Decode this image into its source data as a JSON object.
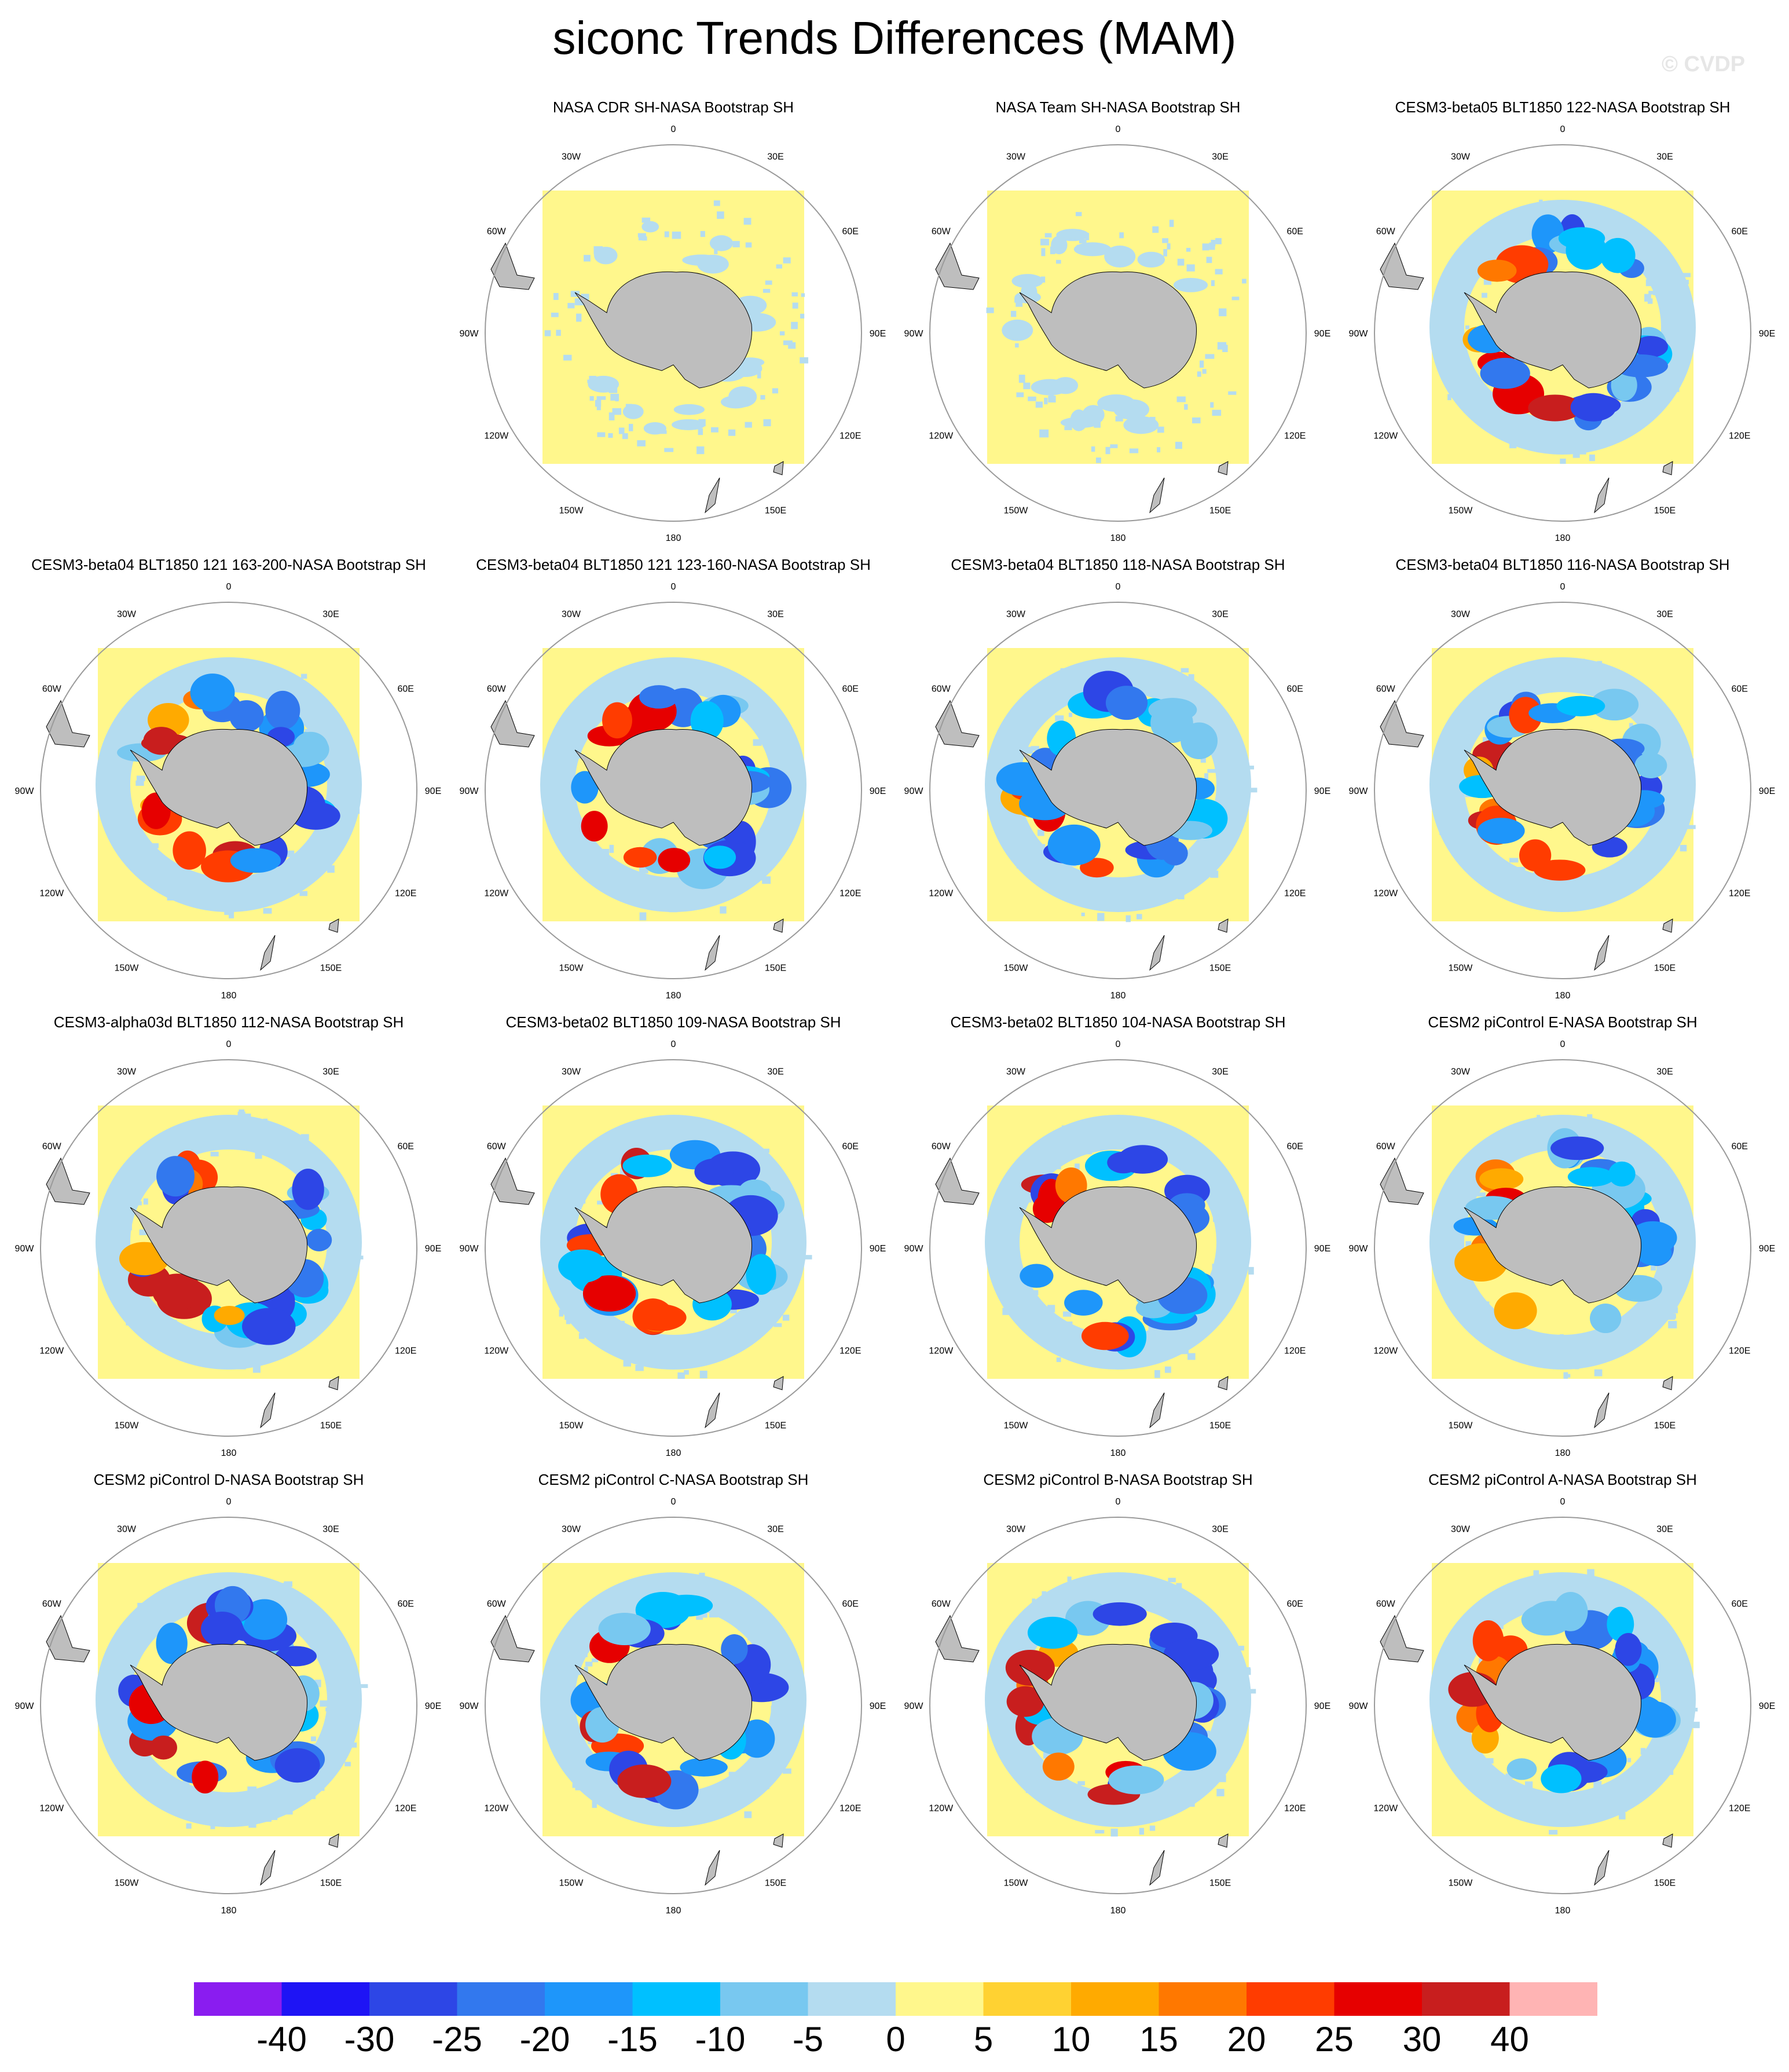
{
  "title": "siconc Trends Differences (MAM)",
  "watermark": "© CVDP",
  "land_color": "#bebebe",
  "background_color": "#ffffff",
  "lon_labels": [
    "0",
    "30E",
    "60E",
    "90E",
    "120E",
    "150E",
    "180",
    "150W",
    "120W",
    "90W",
    "60W",
    "30W"
  ],
  "panels": [
    {
      "title": "NASA CDR SH-NASA Bootstrap SH",
      "anomaly_strength": 0.15,
      "pattern_seed": 1
    },
    {
      "title": "NASA Team SH-NASA Bootstrap SH",
      "anomaly_strength": 0.2,
      "pattern_seed": 2
    },
    {
      "title": "CESM3-beta05 BLT1850 122-NASA Bootstrap SH",
      "anomaly_strength": 1.0,
      "pattern_seed": 3
    },
    {
      "title": "CESM3-beta04 BLT1850 121 163-200-NASA Bootstrap SH",
      "anomaly_strength": 1.0,
      "pattern_seed": 4
    },
    {
      "title": "CESM3-beta04 BLT1850 121 123-160-NASA Bootstrap SH",
      "anomaly_strength": 1.0,
      "pattern_seed": 5
    },
    {
      "title": "CESM3-beta04 BLT1850 118-NASA Bootstrap SH",
      "anomaly_strength": 1.0,
      "pattern_seed": 6
    },
    {
      "title": "CESM3-beta04 BLT1850 116-NASA Bootstrap SH",
      "anomaly_strength": 1.0,
      "pattern_seed": 7
    },
    {
      "title": "CESM3-alpha03d BLT1850 112-NASA Bootstrap SH",
      "anomaly_strength": 1.0,
      "pattern_seed": 8
    },
    {
      "title": "CESM3-beta02 BLT1850 109-NASA Bootstrap SH",
      "anomaly_strength": 1.0,
      "pattern_seed": 9
    },
    {
      "title": "CESM3-beta02 BLT1850 104-NASA Bootstrap SH",
      "anomaly_strength": 1.0,
      "pattern_seed": 10
    },
    {
      "title": "CESM2 piControl E-NASA Bootstrap SH",
      "anomaly_strength": 1.0,
      "pattern_seed": 11
    },
    {
      "title": "CESM2 piControl D-NASA Bootstrap SH",
      "anomaly_strength": 1.0,
      "pattern_seed": 12
    },
    {
      "title": "CESM2 piControl C-NASA Bootstrap SH",
      "anomaly_strength": 1.0,
      "pattern_seed": 13
    },
    {
      "title": "CESM2 piControl B-NASA Bootstrap SH",
      "anomaly_strength": 1.0,
      "pattern_seed": 14
    },
    {
      "title": "CESM2 piControl A-NASA Bootstrap SH",
      "anomaly_strength": 1.0,
      "pattern_seed": 15
    }
  ],
  "chart_data": {
    "type": "heatmap",
    "title": "siconc Trends Differences (MAM)",
    "projection": "south-polar-stereographic",
    "panel_count": 15,
    "colorbar": {
      "labels": [
        "-40",
        "-30",
        "-25",
        "-20",
        "-15",
        "-10",
        "-5",
        "0",
        "5",
        "10",
        "15",
        "20",
        "25",
        "30",
        "40"
      ],
      "colors": [
        "#8a1cf0",
        "#1e14f5",
        "#2d46e6",
        "#3278ee",
        "#1e96fa",
        "#00c0ff",
        "#78c8f0",
        "#b4dcf0",
        "#fff78c",
        "#ffd232",
        "#ffaa00",
        "#ff7800",
        "#ff3c00",
        "#e60000",
        "#c81e1e",
        "#ffb4b4"
      ]
    }
  }
}
